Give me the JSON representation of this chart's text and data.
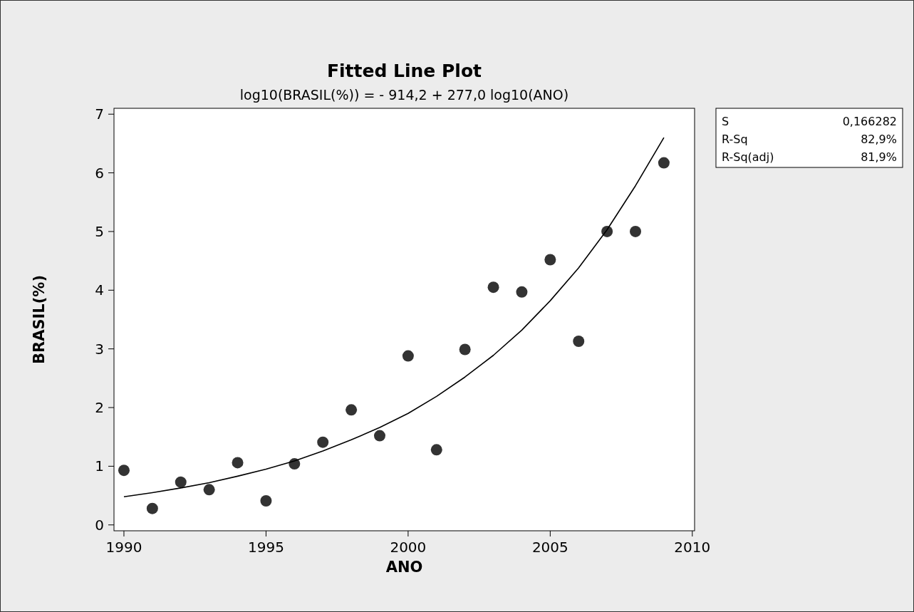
{
  "chart_data": {
    "type": "scatter",
    "title": "Fitted Line Plot",
    "subtitle": "log10(BRASIL(%)) =  - 914,2 + 277,0 log10(ANO)",
    "xlabel": "ANO",
    "ylabel": "BRASIL(%)",
    "x": [
      1990,
      1991,
      1992,
      1993,
      1994,
      1995,
      1996,
      1997,
      1998,
      1999,
      2000,
      2001,
      2002,
      2003,
      2004,
      2005,
      2006,
      2007,
      2008,
      2009
    ],
    "series": [
      {
        "color": "#333333",
        "marker": "circle",
        "values": [
          0.93,
          0.28,
          0.73,
          0.6,
          1.06,
          0.41,
          1.04,
          1.41,
          1.96,
          1.52,
          2.88,
          1.28,
          2.99,
          4.05,
          3.97,
          4.52,
          3.13,
          5.0,
          5.0,
          6.17
        ]
      },
      {
        "type": "line",
        "color": "#000000",
        "line_style": "solid",
        "values": [
          0.48,
          0.55,
          0.63,
          0.72,
          0.83,
          0.95,
          1.09,
          1.26,
          1.45,
          1.66,
          1.9,
          2.19,
          2.52,
          2.89,
          3.32,
          3.82,
          4.38,
          5.03,
          5.78,
          6.6
        ]
      }
    ],
    "xlim": [
      1989.65,
      2010.08
    ],
    "xticks": [
      1990,
      1995,
      2000,
      2005,
      2010
    ],
    "ylim": [
      -0.1,
      7.1
    ],
    "yticks": [
      0,
      1,
      2,
      3,
      4,
      5,
      6,
      7
    ],
    "grid": false,
    "annotations": [
      [
        "S",
        "0,166282"
      ],
      [
        "R-Sq",
        "82,9%"
      ],
      [
        "R-Sq(adj)",
        "81,9%"
      ]
    ]
  }
}
